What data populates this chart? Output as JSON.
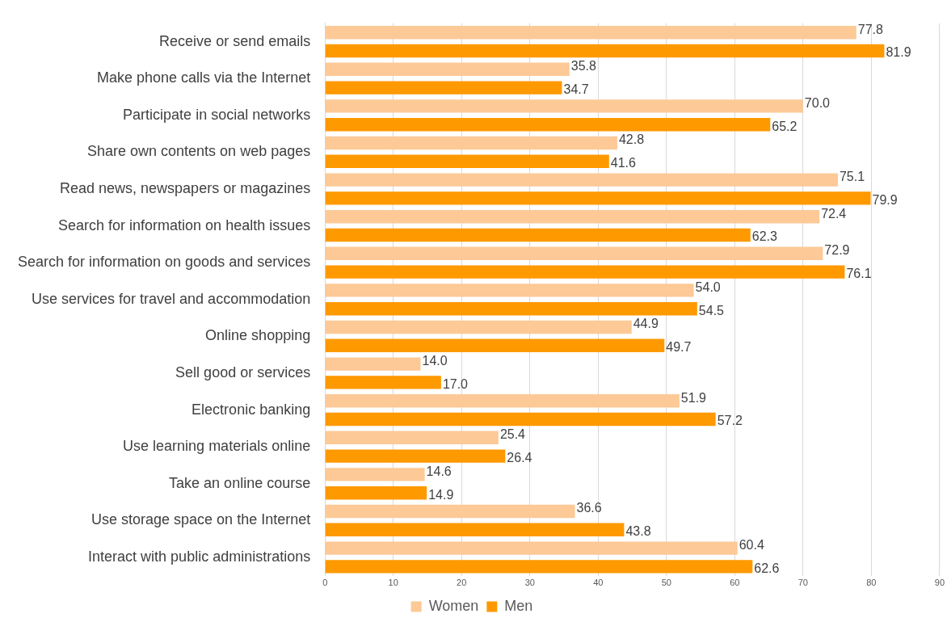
{
  "chart_data": {
    "type": "bar",
    "orientation": "horizontal",
    "categories": [
      "Receive or send emails",
      "Make phone calls via the Internet",
      "Participate in social networks",
      "Share own contents on web pages",
      "Read news, newspapers or magazines",
      "Search for information on health issues",
      "Search for information on goods and services",
      "Use services for travel and accommodation",
      "Online shopping",
      "Sell good or services",
      "Electronic banking",
      "Use learning materials online",
      "Take an online course",
      "Use storage space on the Internet",
      "Interact with public administrations"
    ],
    "series": [
      {
        "name": "Women",
        "color": "#fdc996",
        "values": [
          77.8,
          35.8,
          70.0,
          42.8,
          75.1,
          72.4,
          72.9,
          54.0,
          44.9,
          14.0,
          51.9,
          25.4,
          14.6,
          36.6,
          60.4
        ],
        "value_labels": [
          "77.8",
          "35.8",
          "70.0",
          "42.8",
          "75.1",
          "72.4",
          "72.9",
          "54.0",
          "44.9",
          "14.0",
          "51.9",
          "25.4",
          "14.6",
          "36.6",
          "60.4"
        ]
      },
      {
        "name": "Men",
        "color": "#ff9900",
        "values": [
          81.9,
          34.7,
          65.2,
          41.6,
          79.9,
          62.3,
          76.1,
          54.5,
          49.7,
          17.0,
          57.2,
          26.4,
          14.9,
          43.8,
          62.6
        ],
        "value_labels": [
          "81.9",
          "34.7",
          "65.2",
          "41.6",
          "79.9",
          "62.3",
          "76.1",
          "54.5",
          "49.7",
          "17.0",
          "57.2",
          "26.4",
          "14.9",
          "43.8",
          "62.6"
        ]
      }
    ],
    "xlim": [
      0,
      90
    ],
    "xticks": [
      0,
      10,
      20,
      30,
      40,
      50,
      60,
      70,
      80,
      90
    ],
    "grid": "x",
    "legend": "bottom"
  }
}
